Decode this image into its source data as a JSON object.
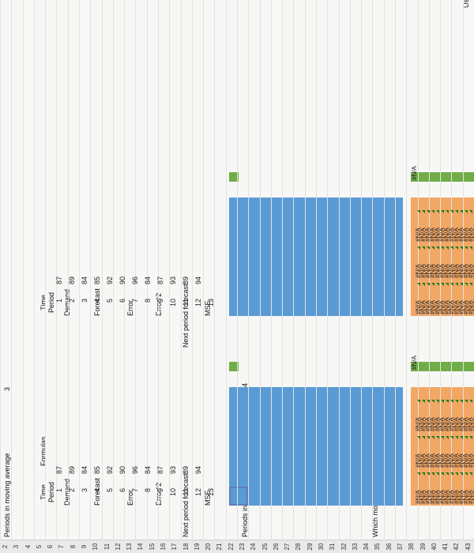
{
  "labels": {
    "periods_ma": "Periods in moving average",
    "periods_ma2": "Periods in moving average",
    "periods_value1": "3",
    "periods_value2": "4",
    "time_period": "Time Period",
    "demand": "Demand",
    "forecast": "Forecast",
    "error": "Error",
    "error_sq": "Error^2",
    "formulas": "Formulas",
    "next_forecast": "Next period forecast:",
    "mse": "MSE",
    "which_best": "Which moving average is best?",
    "na": "#N/A",
    "edge_us": "Us"
  },
  "row_numbers": [
    "2",
    "3",
    "4",
    "5",
    "6",
    "7",
    "8",
    "9",
    "10",
    "11",
    "12",
    "13",
    "14",
    "15",
    "16",
    "17",
    "18",
    "19",
    "20",
    "21",
    "22",
    "23",
    "24",
    "25",
    "26",
    "27",
    "28",
    "29",
    "30",
    "31",
    "32",
    "33",
    "34",
    "35",
    "36",
    "37",
    "38",
    "39",
    "40",
    "41",
    "42",
    "43"
  ],
  "table1": {
    "periods": [
      "1",
      "2",
      "3",
      "4",
      "5",
      "6",
      "7",
      "8",
      "9",
      "10",
      "11",
      "12",
      "13"
    ],
    "demand": [
      "87",
      "89",
      "84",
      "85",
      "92",
      "90",
      "96",
      "84",
      "87",
      "93",
      "89",
      "94"
    ]
  },
  "table2": {
    "periods": [
      "1",
      "2",
      "3",
      "4",
      "5",
      "6",
      "7",
      "8",
      "9",
      "10",
      "11",
      "12",
      "13"
    ],
    "demand": [
      "87",
      "89",
      "84",
      "85",
      "92",
      "90",
      "96",
      "84",
      "87",
      "93",
      "89",
      "94"
    ]
  },
  "colors": {
    "orange": "#f2a765",
    "blue": "#5b9bd5",
    "green": "#70ad47"
  }
}
